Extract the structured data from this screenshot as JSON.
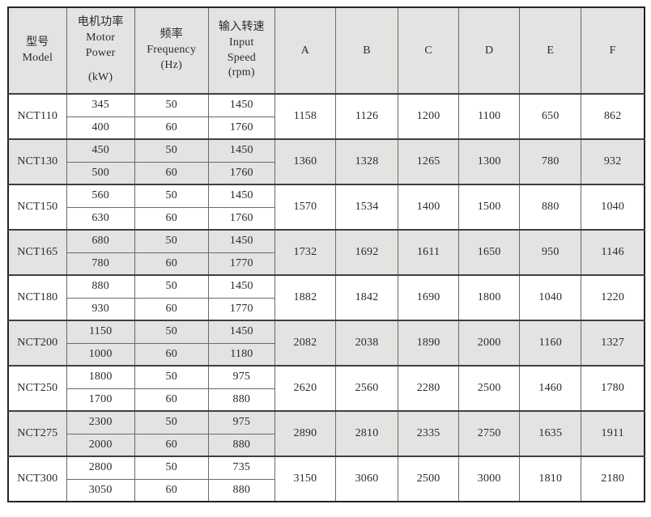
{
  "table": {
    "header": {
      "model_zh": "型号",
      "model_en": "Model",
      "power_zh": "电机功率",
      "power_en1": "Motor",
      "power_en2": "Power",
      "power_unit": "(kW)",
      "freq_zh": "频率",
      "freq_en": "Frequency",
      "freq_unit": "(Hz)",
      "speed_zh": "输入转速",
      "speed_en1": "Input",
      "speed_en2": "Speed",
      "speed_unit": "(rpm)",
      "dims": [
        "A",
        "B",
        "C",
        "D",
        "E",
        "F"
      ]
    },
    "rows": [
      {
        "model": "NCT110",
        "sub": [
          {
            "power": "345",
            "freq": "50",
            "speed": "1450"
          },
          {
            "power": "400",
            "freq": "60",
            "speed": "1760"
          }
        ],
        "dims": [
          "1158",
          "1126",
          "1200",
          "1100",
          "650",
          "862"
        ]
      },
      {
        "model": "NCT130",
        "sub": [
          {
            "power": "450",
            "freq": "50",
            "speed": "1450"
          },
          {
            "power": "500",
            "freq": "60",
            "speed": "1760"
          }
        ],
        "dims": [
          "1360",
          "1328",
          "1265",
          "1300",
          "780",
          "932"
        ]
      },
      {
        "model": "NCT150",
        "sub": [
          {
            "power": "560",
            "freq": "50",
            "speed": "1450"
          },
          {
            "power": "630",
            "freq": "60",
            "speed": "1760"
          }
        ],
        "dims": [
          "1570",
          "1534",
          "1400",
          "1500",
          "880",
          "1040"
        ]
      },
      {
        "model": "NCT165",
        "sub": [
          {
            "power": "680",
            "freq": "50",
            "speed": "1450"
          },
          {
            "power": "780",
            "freq": "60",
            "speed": "1770"
          }
        ],
        "dims": [
          "1732",
          "1692",
          "1611",
          "1650",
          "950",
          "1146"
        ]
      },
      {
        "model": "NCT180",
        "sub": [
          {
            "power": "880",
            "freq": "50",
            "speed": "1450"
          },
          {
            "power": "930",
            "freq": "60",
            "speed": "1770"
          }
        ],
        "dims": [
          "1882",
          "1842",
          "1690",
          "1800",
          "1040",
          "1220"
        ]
      },
      {
        "model": "NCT200",
        "sub": [
          {
            "power": "1150",
            "freq": "50",
            "speed": "1450"
          },
          {
            "power": "1000",
            "freq": "60",
            "speed": "1180"
          }
        ],
        "dims": [
          "2082",
          "2038",
          "1890",
          "2000",
          "1160",
          "1327"
        ]
      },
      {
        "model": "NCT250",
        "sub": [
          {
            "power": "1800",
            "freq": "50",
            "speed": "975"
          },
          {
            "power": "1700",
            "freq": "60",
            "speed": "880"
          }
        ],
        "dims": [
          "2620",
          "2560",
          "2280",
          "2500",
          "1460",
          "1780"
        ]
      },
      {
        "model": "NCT275",
        "sub": [
          {
            "power": "2300",
            "freq": "50",
            "speed": "975"
          },
          {
            "power": "2000",
            "freq": "60",
            "speed": "880"
          }
        ],
        "dims": [
          "2890",
          "2810",
          "2335",
          "2750",
          "1635",
          "1911"
        ]
      },
      {
        "model": "NCT300",
        "sub": [
          {
            "power": "2800",
            "freq": "50",
            "speed": "735"
          },
          {
            "power": "3050",
            "freq": "60",
            "speed": "880"
          }
        ],
        "dims": [
          "3150",
          "3060",
          "2500",
          "3000",
          "1810",
          "2180"
        ]
      }
    ]
  },
  "colors": {
    "band_gray": "#e3e3e1",
    "inner_border": "#6a6a6a",
    "group_border": "#3f3f3f",
    "outer_border": "#242424",
    "text": "#2b2b2b"
  }
}
